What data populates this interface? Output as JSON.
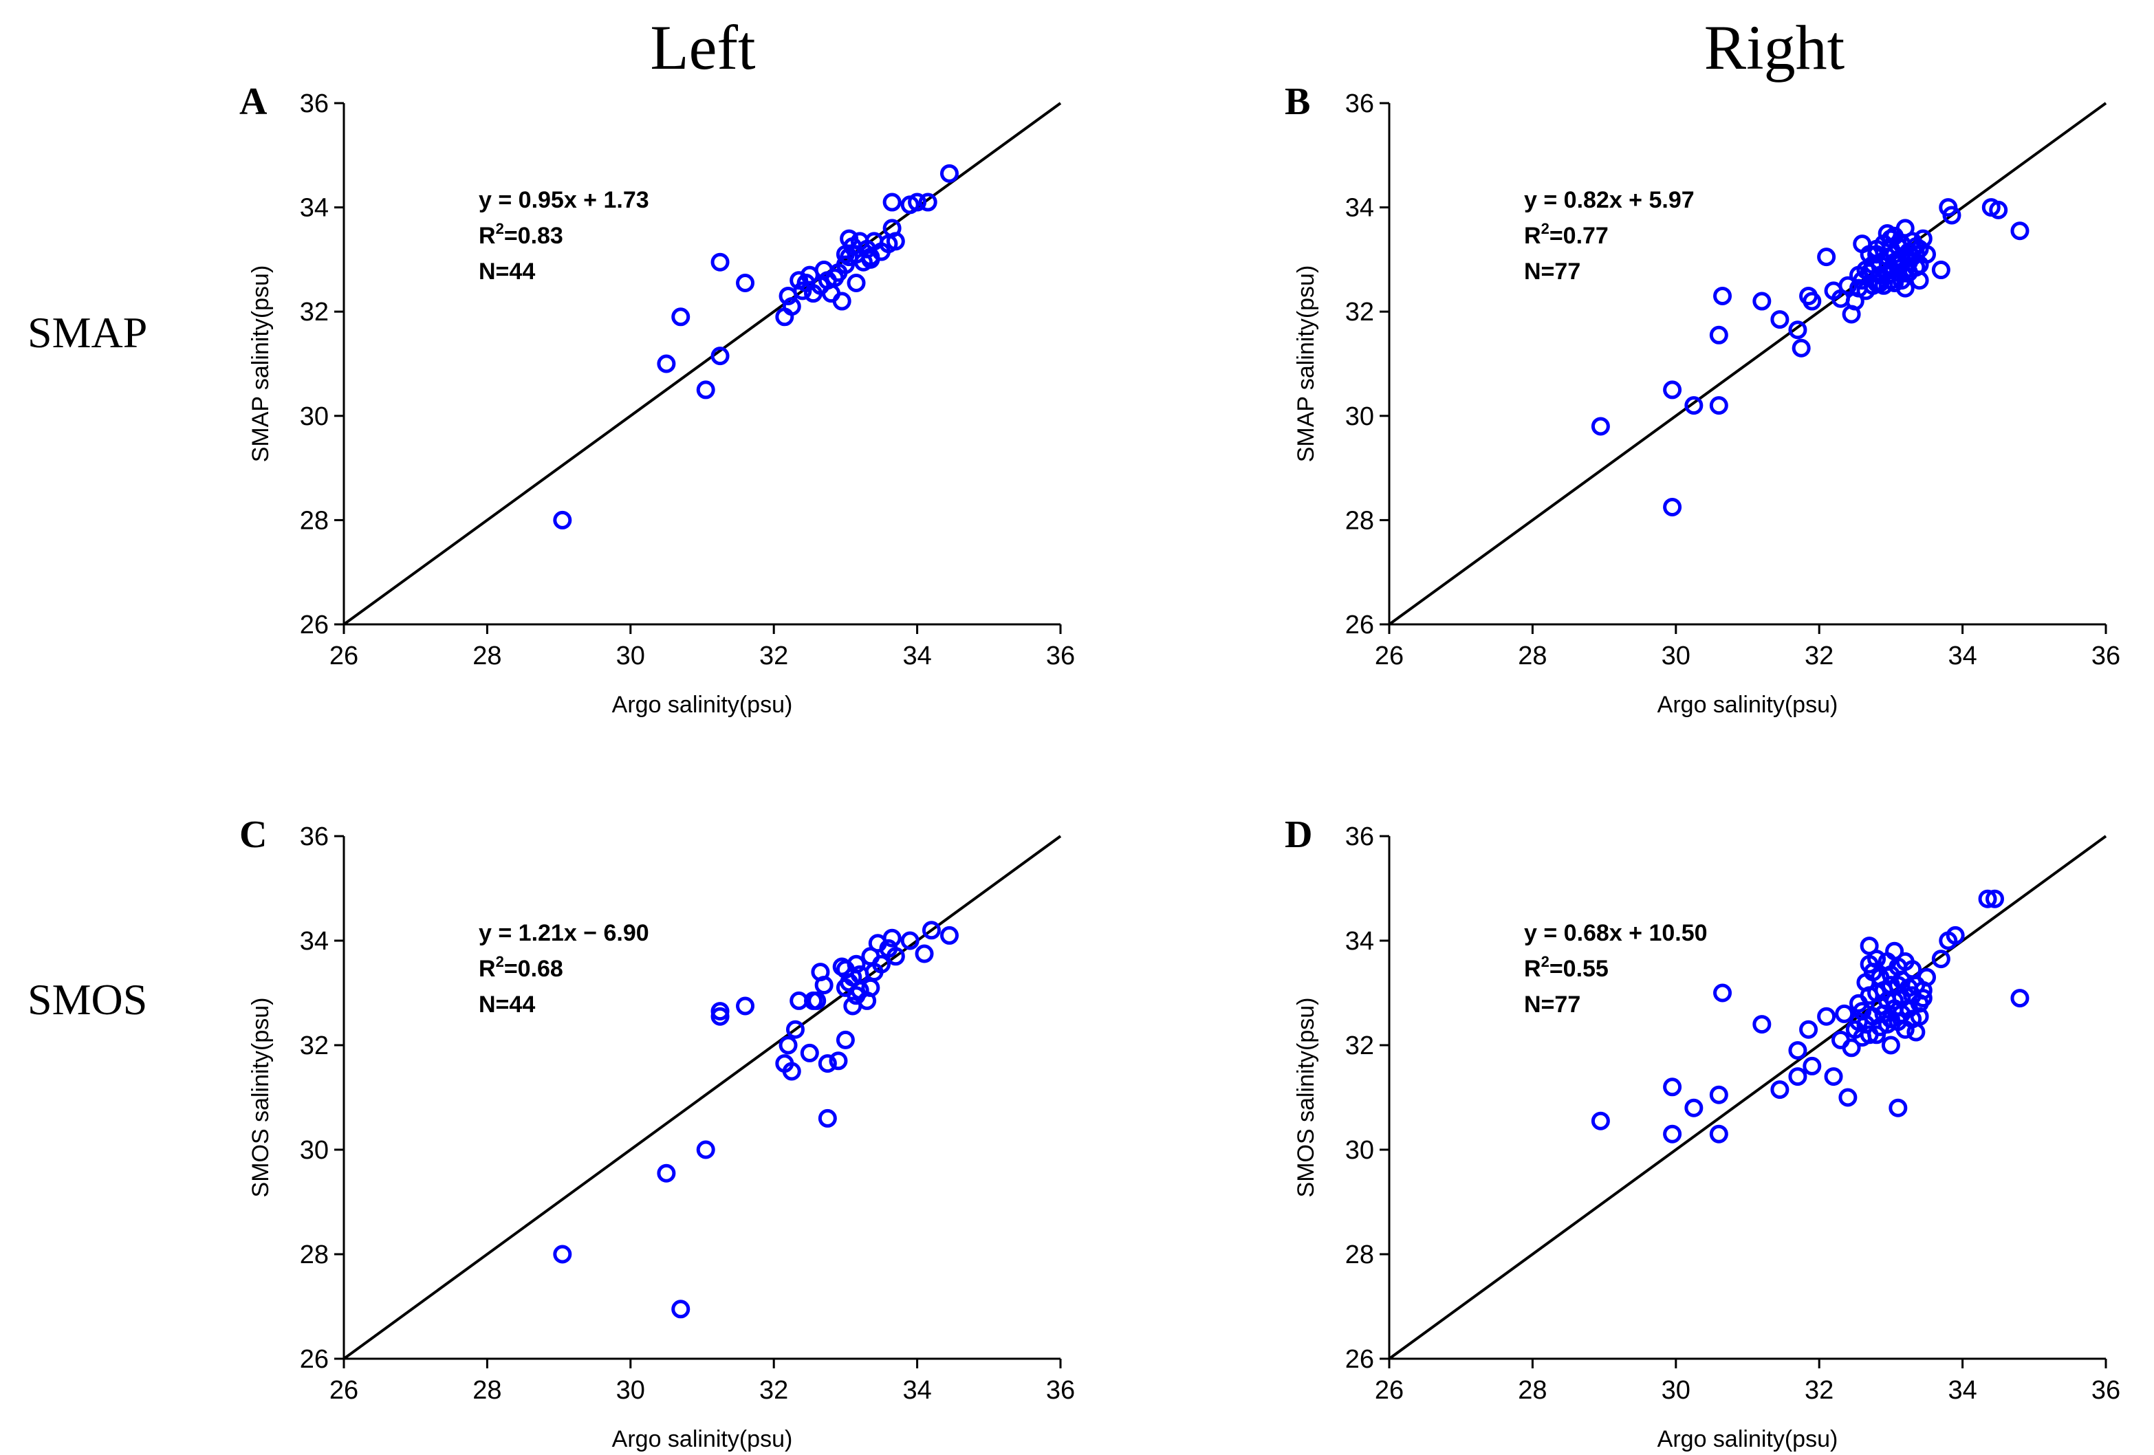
{
  "columns": [
    "Left",
    "Right"
  ],
  "rows": [
    "SMAP",
    "SMOS"
  ],
  "colors": {
    "marker": "#0000ff",
    "line": "#000000",
    "text": "#000000"
  },
  "chart_data": [
    {
      "type": "scatter",
      "panel": "A",
      "xlabel": "Argo salinity(psu)",
      "ylabel": "SMAP salinity(psu)",
      "xlim": [
        26,
        36
      ],
      "ylim": [
        26,
        36
      ],
      "xticks": [
        "26",
        "28",
        "30",
        "32",
        "34",
        "36"
      ],
      "yticks": [
        "26",
        "28",
        "30",
        "32",
        "34",
        "36"
      ],
      "equation": "y = 0.95x + 1.73",
      "r2_label": "R",
      "r2_sup": "2",
      "r2_value": "=0.83",
      "n_label": "N=44",
      "fit": {
        "slope": 1,
        "intercept": 0
      },
      "points": [
        [
          29.05,
          28.0
        ],
        [
          30.5,
          31.0
        ],
        [
          30.7,
          31.9
        ],
        [
          31.05,
          30.5
        ],
        [
          31.25,
          31.15
        ],
        [
          31.25,
          32.95
        ],
        [
          31.6,
          32.55
        ],
        [
          32.15,
          31.9
        ],
        [
          32.2,
          32.3
        ],
        [
          32.25,
          32.1
        ],
        [
          32.35,
          32.6
        ],
        [
          32.4,
          32.4
        ],
        [
          32.5,
          32.7
        ],
        [
          32.55,
          32.35
        ],
        [
          32.65,
          32.5
        ],
        [
          32.7,
          32.8
        ],
        [
          32.8,
          32.35
        ],
        [
          32.85,
          32.65
        ],
        [
          32.9,
          32.75
        ],
        [
          32.95,
          32.2
        ],
        [
          33.0,
          32.9
        ],
        [
          33.05,
          33.05
        ],
        [
          33.05,
          33.4
        ],
        [
          33.1,
          33.25
        ],
        [
          33.15,
          32.55
        ],
        [
          33.15,
          33.1
        ],
        [
          33.2,
          33.35
        ],
        [
          33.25,
          32.95
        ],
        [
          33.3,
          33.2
        ],
        [
          33.35,
          33.05
        ],
        [
          33.4,
          33.35
        ],
        [
          33.5,
          33.15
        ],
        [
          33.6,
          33.3
        ],
        [
          33.65,
          33.6
        ],
        [
          33.65,
          34.1
        ],
        [
          33.7,
          33.35
        ],
        [
          33.9,
          34.05
        ],
        [
          34.0,
          34.1
        ],
        [
          34.15,
          34.1
        ],
        [
          34.45,
          34.65
        ],
        [
          33.35,
          33.0
        ],
        [
          32.75,
          32.6
        ],
        [
          33.0,
          33.1
        ],
        [
          32.45,
          32.55
        ]
      ]
    },
    {
      "type": "scatter",
      "panel": "B",
      "xlabel": "Argo salinity(psu)",
      "ylabel": "SMAP salinity(psu)",
      "xlim": [
        26,
        36
      ],
      "ylim": [
        26,
        36
      ],
      "xticks": [
        "26",
        "28",
        "30",
        "32",
        "34",
        "36"
      ],
      "yticks": [
        "26",
        "28",
        "30",
        "32",
        "34",
        "36"
      ],
      "equation": "y = 0.82x + 5.97",
      "r2_label": "R",
      "r2_sup": "2",
      "r2_value": "=0.77",
      "n_label": "N=77",
      "fit": {
        "slope": 1,
        "intercept": 0
      },
      "points": [
        [
          28.95,
          29.8
        ],
        [
          29.95,
          30.5
        ],
        [
          29.95,
          28.25
        ],
        [
          30.25,
          30.2
        ],
        [
          30.6,
          30.2
        ],
        [
          30.6,
          31.55
        ],
        [
          30.65,
          32.3
        ],
        [
          31.2,
          32.2
        ],
        [
          31.45,
          31.85
        ],
        [
          31.7,
          31.65
        ],
        [
          31.75,
          31.3
        ],
        [
          31.85,
          32.3
        ],
        [
          31.9,
          32.2
        ],
        [
          32.1,
          33.05
        ],
        [
          32.2,
          32.4
        ],
        [
          32.3,
          32.25
        ],
        [
          32.4,
          32.5
        ],
        [
          32.45,
          31.95
        ],
        [
          32.5,
          32.2
        ],
        [
          32.55,
          32.7
        ],
        [
          32.6,
          33.3
        ],
        [
          32.65,
          32.4
        ],
        [
          32.7,
          32.75
        ],
        [
          32.75,
          32.5
        ],
        [
          32.8,
          32.55
        ],
        [
          32.8,
          33.1
        ],
        [
          32.85,
          32.9
        ],
        [
          32.9,
          32.5
        ],
        [
          32.95,
          32.7
        ],
        [
          33.0,
          32.8
        ],
        [
          33.0,
          33.2
        ],
        [
          33.05,
          33.45
        ],
        [
          33.05,
          32.55
        ],
        [
          33.1,
          32.9
        ],
        [
          33.1,
          33.0
        ],
        [
          33.15,
          33.3
        ],
        [
          33.2,
          33.6
        ],
        [
          33.2,
          32.45
        ],
        [
          33.25,
          32.75
        ],
        [
          33.3,
          33.05
        ],
        [
          33.35,
          33.25
        ],
        [
          33.4,
          32.6
        ],
        [
          33.4,
          32.9
        ],
        [
          33.45,
          33.4
        ],
        [
          33.5,
          33.1
        ],
        [
          33.7,
          32.8
        ],
        [
          33.8,
          34.0
        ],
        [
          33.85,
          33.85
        ],
        [
          34.4,
          34.0
        ],
        [
          34.5,
          33.95
        ],
        [
          34.8,
          33.55
        ],
        [
          32.95,
          33.5
        ],
        [
          32.6,
          32.6
        ],
        [
          32.85,
          32.7
        ],
        [
          33.05,
          32.95
        ],
        [
          33.15,
          32.6
        ],
        [
          33.25,
          33.15
        ],
        [
          33.35,
          32.85
        ],
        [
          32.7,
          33.1
        ],
        [
          32.9,
          33.3
        ],
        [
          33.1,
          33.25
        ],
        [
          33.0,
          32.6
        ],
        [
          32.75,
          32.9
        ],
        [
          33.2,
          32.8
        ],
        [
          33.3,
          33.35
        ],
        [
          32.95,
          33.05
        ],
        [
          32.55,
          32.45
        ],
        [
          33.05,
          33.1
        ],
        [
          33.15,
          33.0
        ],
        [
          32.85,
          32.55
        ],
        [
          33.25,
          32.95
        ],
        [
          33.4,
          33.2
        ],
        [
          32.65,
          32.8
        ],
        [
          33.0,
          33.4
        ],
        [
          33.1,
          32.75
        ],
        [
          32.8,
          33.2
        ],
        [
          33.35,
          33.1
        ]
      ]
    },
    {
      "type": "scatter",
      "panel": "C",
      "xlabel": "Argo salinity(psu)",
      "ylabel": "SMOS salinity(psu)",
      "xlim": [
        26,
        36
      ],
      "ylim": [
        26,
        36
      ],
      "xticks": [
        "26",
        "28",
        "30",
        "32",
        "34",
        "36"
      ],
      "yticks": [
        "26",
        "28",
        "30",
        "32",
        "34",
        "36"
      ],
      "equation": "y = 1.21x − 6.90",
      "r2_label": "R",
      "r2_sup": "2",
      "r2_value": "=0.68",
      "n_label": "N=44",
      "fit": {
        "slope": 1,
        "intercept": 0
      },
      "points": [
        [
          29.05,
          28.0
        ],
        [
          30.5,
          29.55
        ],
        [
          30.7,
          26.95
        ],
        [
          31.05,
          30.0
        ],
        [
          31.25,
          32.55
        ],
        [
          31.25,
          32.65
        ],
        [
          31.6,
          32.75
        ],
        [
          32.15,
          31.65
        ],
        [
          32.2,
          32.0
        ],
        [
          32.25,
          31.5
        ],
        [
          32.3,
          32.3
        ],
        [
          32.35,
          32.85
        ],
        [
          32.5,
          31.85
        ],
        [
          32.6,
          32.85
        ],
        [
          32.65,
          33.4
        ],
        [
          32.7,
          33.15
        ],
        [
          32.75,
          31.65
        ],
        [
          32.75,
          30.6
        ],
        [
          32.9,
          31.7
        ],
        [
          33.0,
          32.1
        ],
        [
          33.0,
          33.45
        ],
        [
          33.05,
          33.2
        ],
        [
          33.1,
          32.75
        ],
        [
          33.1,
          33.3
        ],
        [
          33.15,
          32.95
        ],
        [
          33.2,
          33.35
        ],
        [
          33.3,
          32.85
        ],
        [
          33.35,
          33.1
        ],
        [
          33.35,
          33.7
        ],
        [
          33.45,
          33.95
        ],
        [
          33.5,
          33.55
        ],
        [
          33.6,
          33.85
        ],
        [
          33.65,
          34.05
        ],
        [
          33.7,
          33.7
        ],
        [
          33.9,
          34.0
        ],
        [
          34.1,
          33.75
        ],
        [
          34.2,
          34.2
        ],
        [
          34.45,
          34.1
        ],
        [
          33.2,
          33.05
        ],
        [
          32.95,
          33.5
        ],
        [
          33.4,
          33.4
        ],
        [
          32.55,
          32.85
        ],
        [
          33.15,
          33.55
        ],
        [
          33.0,
          33.1
        ]
      ]
    },
    {
      "type": "scatter",
      "panel": "D",
      "xlabel": "Argo salinity(psu)",
      "ylabel": "SMOS salinity(psu)",
      "xlim": [
        26,
        36
      ],
      "ylim": [
        26,
        36
      ],
      "xticks": [
        "26",
        "28",
        "30",
        "32",
        "34",
        "36"
      ],
      "yticks": [
        "26",
        "28",
        "30",
        "32",
        "34",
        "36"
      ],
      "equation": "y = 0.68x + 10.50",
      "r2_label": "R",
      "r2_sup": "2",
      "r2_value": "=0.55",
      "n_label": "N=77",
      "fit": {
        "slope": 1,
        "intercept": 0
      },
      "points": [
        [
          28.95,
          30.55
        ],
        [
          29.95,
          31.2
        ],
        [
          29.95,
          30.3
        ],
        [
          30.25,
          30.8
        ],
        [
          30.6,
          31.05
        ],
        [
          30.6,
          30.3
        ],
        [
          30.65,
          33.0
        ],
        [
          31.2,
          32.4
        ],
        [
          31.45,
          31.15
        ],
        [
          31.7,
          31.4
        ],
        [
          31.7,
          31.9
        ],
        [
          31.85,
          32.3
        ],
        [
          31.9,
          31.6
        ],
        [
          32.1,
          32.55
        ],
        [
          32.2,
          31.4
        ],
        [
          32.3,
          32.1
        ],
        [
          32.35,
          32.6
        ],
        [
          32.4,
          31.0
        ],
        [
          32.45,
          31.95
        ],
        [
          32.5,
          32.3
        ],
        [
          32.55,
          32.8
        ],
        [
          32.6,
          32.15
        ],
        [
          32.65,
          33.2
        ],
        [
          32.7,
          33.9
        ],
        [
          32.7,
          33.55
        ],
        [
          32.75,
          32.55
        ],
        [
          32.8,
          32.2
        ],
        [
          32.8,
          33.0
        ],
        [
          32.85,
          33.3
        ],
        [
          32.9,
          32.6
        ],
        [
          32.95,
          32.4
        ],
        [
          33.0,
          32.0
        ],
        [
          33.0,
          33.15
        ],
        [
          33.05,
          33.8
        ],
        [
          33.05,
          32.7
        ],
        [
          33.1,
          33.5
        ],
        [
          33.1,
          30.8
        ],
        [
          33.15,
          32.9
        ],
        [
          33.2,
          32.3
        ],
        [
          33.25,
          33.1
        ],
        [
          33.3,
          32.5
        ],
        [
          33.3,
          33.45
        ],
        [
          33.35,
          32.25
        ],
        [
          33.4,
          32.8
        ],
        [
          33.45,
          33.05
        ],
        [
          33.5,
          33.3
        ],
        [
          33.7,
          33.65
        ],
        [
          33.8,
          34.0
        ],
        [
          33.9,
          34.1
        ],
        [
          34.35,
          34.8
        ],
        [
          34.45,
          34.8
        ],
        [
          34.8,
          32.9
        ],
        [
          32.7,
          32.95
        ],
        [
          32.9,
          33.05
        ],
        [
          33.0,
          32.5
        ],
        [
          33.15,
          33.25
        ],
        [
          33.25,
          32.7
        ],
        [
          32.75,
          33.4
        ],
        [
          32.95,
          33.6
        ],
        [
          33.1,
          32.45
        ],
        [
          33.35,
          33.15
        ],
        [
          32.6,
          32.65
        ],
        [
          32.85,
          32.75
        ],
        [
          33.05,
          32.85
        ],
        [
          33.2,
          33.6
        ],
        [
          32.65,
          32.4
        ],
        [
          33.4,
          32.55
        ],
        [
          32.8,
          33.65
        ],
        [
          33.0,
          33.35
        ],
        [
          33.15,
          32.6
        ],
        [
          32.55,
          32.45
        ],
        [
          33.3,
          32.95
        ],
        [
          32.95,
          32.85
        ],
        [
          33.1,
          33.15
        ],
        [
          32.7,
          32.2
        ],
        [
          33.45,
          32.9
        ],
        [
          32.85,
          32.35
        ]
      ]
    }
  ]
}
